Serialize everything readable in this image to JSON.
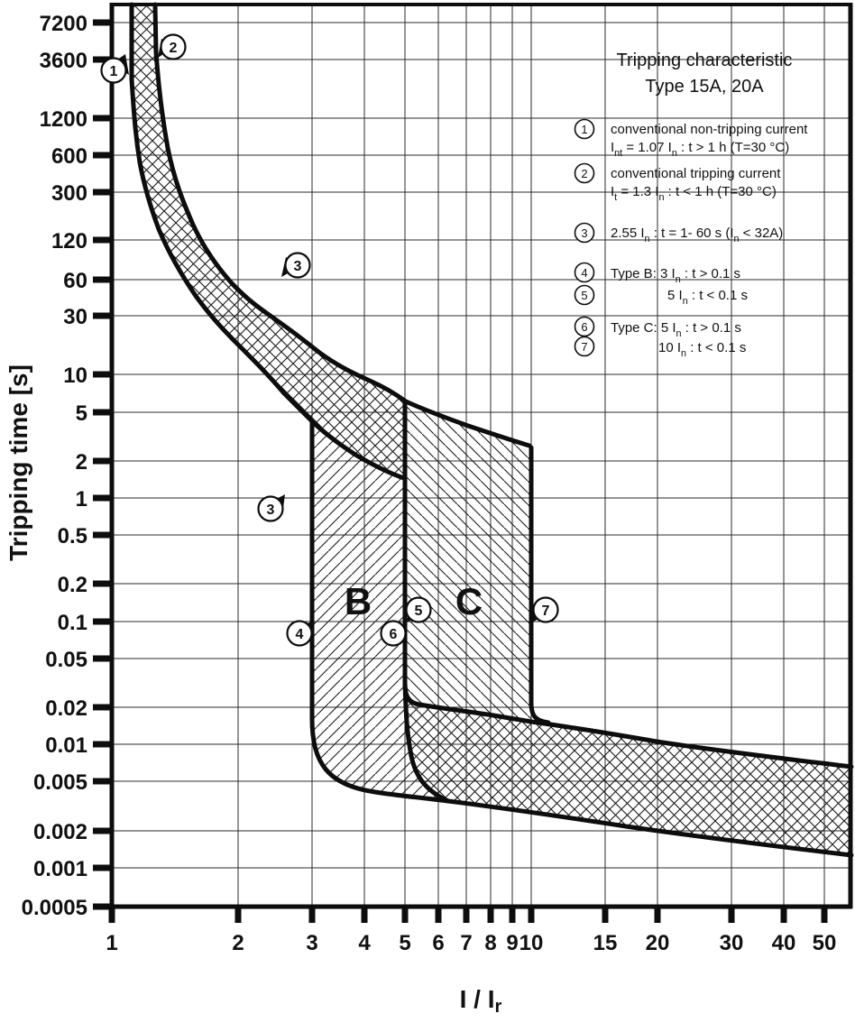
{
  "figure": {
    "title": {
      "line1": "Tripping characteristic",
      "line2": "Type 15A, 20A"
    },
    "y_axis": {
      "label": "Tripping time [s]",
      "ticks": [
        "7200",
        "3600",
        "1200",
        "600",
        "300",
        "120",
        "60",
        "30",
        "10",
        "5",
        "2",
        "1",
        "0.5",
        "0.2",
        "0.1",
        "0.05",
        "0.02",
        "0.01",
        "0.005",
        "0.002",
        "0.001",
        "0.0005"
      ]
    },
    "x_axis": {
      "label_parts": [
        {
          "t": "I / I"
        },
        {
          "t": "r",
          "sub": true
        }
      ],
      "ticks": [
        "1",
        "2",
        "3",
        "4",
        "5",
        "6",
        "7",
        "8",
        "9",
        "10",
        "15",
        "20",
        "30",
        "40",
        "50"
      ]
    },
    "region_labels": {
      "b": "B",
      "c": "C"
    },
    "chart_markers": [
      "1",
      "2",
      "3",
      "3",
      "4",
      "5",
      "6",
      "7"
    ],
    "legend": {
      "items": [
        {
          "num": "1",
          "lines": [
            [
              {
                "t": "conventional non-tripping current"
              }
            ],
            [
              {
                "t": "I"
              },
              {
                "t": "nt",
                "sub": true
              },
              {
                "t": " = 1.07 I"
              },
              {
                "t": "n",
                "sub": true
              },
              {
                "t": " :  t > 1 h   (T=30 °C)"
              }
            ]
          ]
        },
        {
          "num": "2",
          "lines": [
            [
              {
                "t": "conventional tripping current"
              }
            ],
            [
              {
                "t": "I"
              },
              {
                "t": "t",
                "sub": true
              },
              {
                "t": " = 1.3 I"
              },
              {
                "t": "n",
                "sub": true
              },
              {
                "t": " :  t < 1 h   (T=30 °C)"
              }
            ]
          ]
        },
        {
          "num": "3",
          "lines": [
            [
              {
                "t": "2.55 I"
              },
              {
                "t": "n",
                "sub": true
              },
              {
                "t": " : t = 1- 60 s (I"
              },
              {
                "t": "n",
                "sub": true
              },
              {
                "t": " < 32A)"
              }
            ]
          ]
        },
        {
          "num": "4",
          "lines": [
            [
              {
                "t": "Type B: 3 I"
              },
              {
                "t": "n",
                "sub": true
              },
              {
                "t": " :  t > 0.1 s"
              }
            ]
          ]
        },
        {
          "num": "5",
          "lines": [
            [
              {
                "t": "5 I"
              },
              {
                "t": "n",
                "sub": true
              },
              {
                "t": " :  t < 0.1 s"
              }
            ]
          ]
        },
        {
          "num": "6",
          "lines": [
            [
              {
                "t": "Type C: 5 I"
              },
              {
                "t": "n",
                "sub": true
              },
              {
                "t": " : t > 0.1 s"
              }
            ]
          ]
        },
        {
          "num": "7",
          "lines": [
            [
              {
                "t": "10 I"
              },
              {
                "t": "n",
                "sub": true
              },
              {
                "t": " : t < 0.1 s"
              }
            ]
          ]
        }
      ]
    }
  },
  "chart_data": {
    "type": "line",
    "title": "Tripping characteristic Type 15A, 20A",
    "xlabel": "I / Ir",
    "ylabel": "Tripping time [s]",
    "x_axis": {
      "scale": "log",
      "range": [
        1,
        58
      ],
      "ticks": [
        1,
        2,
        3,
        4,
        5,
        6,
        7,
        8,
        9,
        10,
        15,
        20,
        30,
        40,
        50
      ]
    },
    "y_axis": {
      "scale": "log",
      "range": [
        0.0005,
        10000
      ],
      "ticks": [
        7200,
        3600,
        1200,
        600,
        300,
        120,
        60,
        30,
        10,
        5,
        2,
        1,
        0.5,
        0.2,
        0.1,
        0.05,
        0.02,
        0.01,
        0.005,
        0.002,
        0.001,
        0.0005
      ]
    },
    "grid": "gridline at every labeled tick, log-log",
    "legend_position": "top-right inside figure",
    "series": [
      {
        "name": "thermal lower limit (conventional non-tripping current, marker 1)",
        "points_I_t": [
          [
            1.12,
            10000
          ],
          [
            1.13,
            2400
          ],
          [
            1.17,
            780
          ],
          [
            1.25,
            300
          ],
          [
            1.36,
            120
          ],
          [
            1.58,
            48
          ],
          [
            1.94,
            21
          ],
          [
            2.34,
            10
          ],
          [
            2.8,
            5.4
          ],
          [
            3.02,
            4.1
          ],
          [
            3.7,
            2.3
          ],
          [
            4.5,
            1.6
          ],
          [
            4.97,
            1.45
          ]
        ]
      },
      {
        "name": "thermal upper limit (conventional tripping current, marker 2)",
        "points_I_t": [
          [
            1.27,
            10000
          ],
          [
            1.3,
            2000
          ],
          [
            1.39,
            570
          ],
          [
            1.53,
            185
          ],
          [
            1.78,
            73
          ],
          [
            2.17,
            40
          ],
          [
            2.77,
            21
          ],
          [
            3.5,
            12
          ],
          [
            4.5,
            7.5
          ],
          [
            5.8,
            4.9
          ],
          [
            7.5,
            3.5
          ],
          [
            9.9,
            2.7
          ]
        ]
      },
      {
        "name": "Type B lower limit: vertical at 3 In then lower instantaneous boundary (marker 4)",
        "points_I_t": [
          [
            3,
            4.1
          ],
          [
            3,
            0.013
          ],
          [
            3.9,
            0.0044
          ],
          [
            6.3,
            0.0035
          ],
          [
            16.7,
            0.0022
          ],
          [
            58,
            0.0013
          ]
        ]
      },
      {
        "name": "Type B upper limit / instantaneous band upper boundary from 5 In (marker 5)",
        "points_I_t": [
          [
            5,
            6
          ],
          [
            5,
            0.03
          ],
          [
            5.4,
            0.021
          ],
          [
            10,
            0.015
          ],
          [
            20,
            0.01
          ],
          [
            58,
            0.0066
          ]
        ]
      },
      {
        "name": "Type C lower limit: vertical at 5 In joining lower boundary (marker 6)",
        "points_I_t": [
          [
            5,
            1.45
          ],
          [
            5,
            0.03
          ],
          [
            5.3,
            0.008
          ],
          [
            6.3,
            0.0035
          ]
        ]
      },
      {
        "name": "Type C upper limit: vertical at 10 In joining upper boundary (marker 7)",
        "points_I_t": [
          [
            10,
            2.7
          ],
          [
            10,
            0.02
          ],
          [
            10.4,
            0.015
          ]
        ]
      }
    ],
    "regions": [
      {
        "label": "thermal overload tolerance band",
        "fill": "crosshatch",
        "between": "thermal lower and upper limits, ends at 5 In"
      },
      {
        "label": "B",
        "fill": "diagonal-hatch /",
        "x_span": [
          3,
          5
        ]
      },
      {
        "label": "C",
        "fill": "diagonal-hatch \\",
        "x_span": [
          5,
          10
        ]
      },
      {
        "label": "instantaneous tripping band",
        "fill": "crosshatch",
        "right_edge_t_span": [
          0.0013,
          0.0066
        ]
      }
    ],
    "annotations": [
      {
        "num": "1",
        "at_I_t": [
          1.07,
          3600
        ]
      },
      {
        "num": "2",
        "at_I_t": [
          1.3,
          3600
        ]
      },
      {
        "num": "3",
        "at_I_t": [
          2.55,
          60
        ]
      },
      {
        "num": "3",
        "at_I_t": [
          2.55,
          1
        ]
      },
      {
        "num": "4",
        "at_I_t": [
          3,
          0.1
        ]
      },
      {
        "num": "5",
        "at_I_t": [
          5,
          0.1
        ]
      },
      {
        "num": "6",
        "at_I_t": [
          5,
          0.1
        ]
      },
      {
        "num": "7",
        "at_I_t": [
          10,
          0.1
        ]
      }
    ],
    "colors": {
      "ink": "#0d0d0d",
      "background": "#ffffff"
    }
  }
}
